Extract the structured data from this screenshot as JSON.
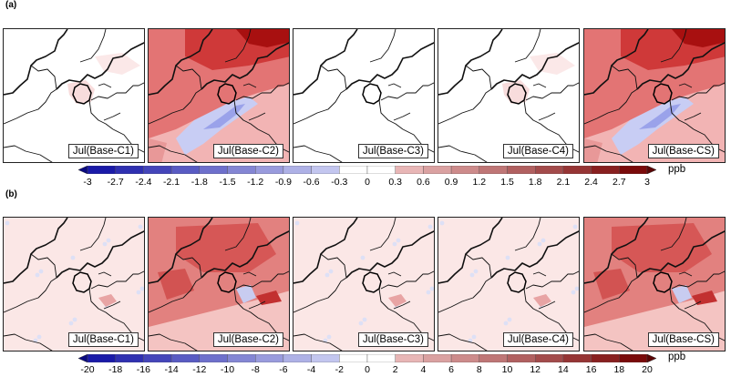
{
  "rows": [
    {
      "label": "(a)",
      "unit": "ppb",
      "panels": [
        "Jul(Base-C1)",
        "Jul(Base-C2)",
        "Jul(Base-C3)",
        "Jul(Base-C4)",
        "Jul(Base-CS)"
      ],
      "ticks": [
        "-3",
        "-2.7",
        "-2.4",
        "-2.1",
        "-1.8",
        "-1.5",
        "-1.2",
        "-0.9",
        "-0.6",
        "-0.3",
        "0",
        "0.3",
        "0.6",
        "0.9",
        "1.2",
        "1.5",
        "1.8",
        "2.1",
        "2.4",
        "2.7",
        "3"
      ]
    },
    {
      "label": "(b)",
      "unit": "ppb",
      "panels": [
        "Jul(Base-C1)",
        "Jul(Base-C2)",
        "Jul(Base-C3)",
        "Jul(Base-C4)",
        "Jul(Base-CS)"
      ],
      "ticks": [
        "-20",
        "-18",
        "-16",
        "-14",
        "-12",
        "-10",
        "-8",
        "-6",
        "-4",
        "-2",
        "0",
        "2",
        "4",
        "6",
        "8",
        "10",
        "12",
        "14",
        "16",
        "18",
        "20"
      ]
    }
  ],
  "colors": {
    "neg_strong": "#1a1aa8",
    "neg_light": "#d8dcf8",
    "neutral": "#ffffff",
    "pos_light": "#f6cccc",
    "pos_strong": "#7a0a0a"
  }
}
